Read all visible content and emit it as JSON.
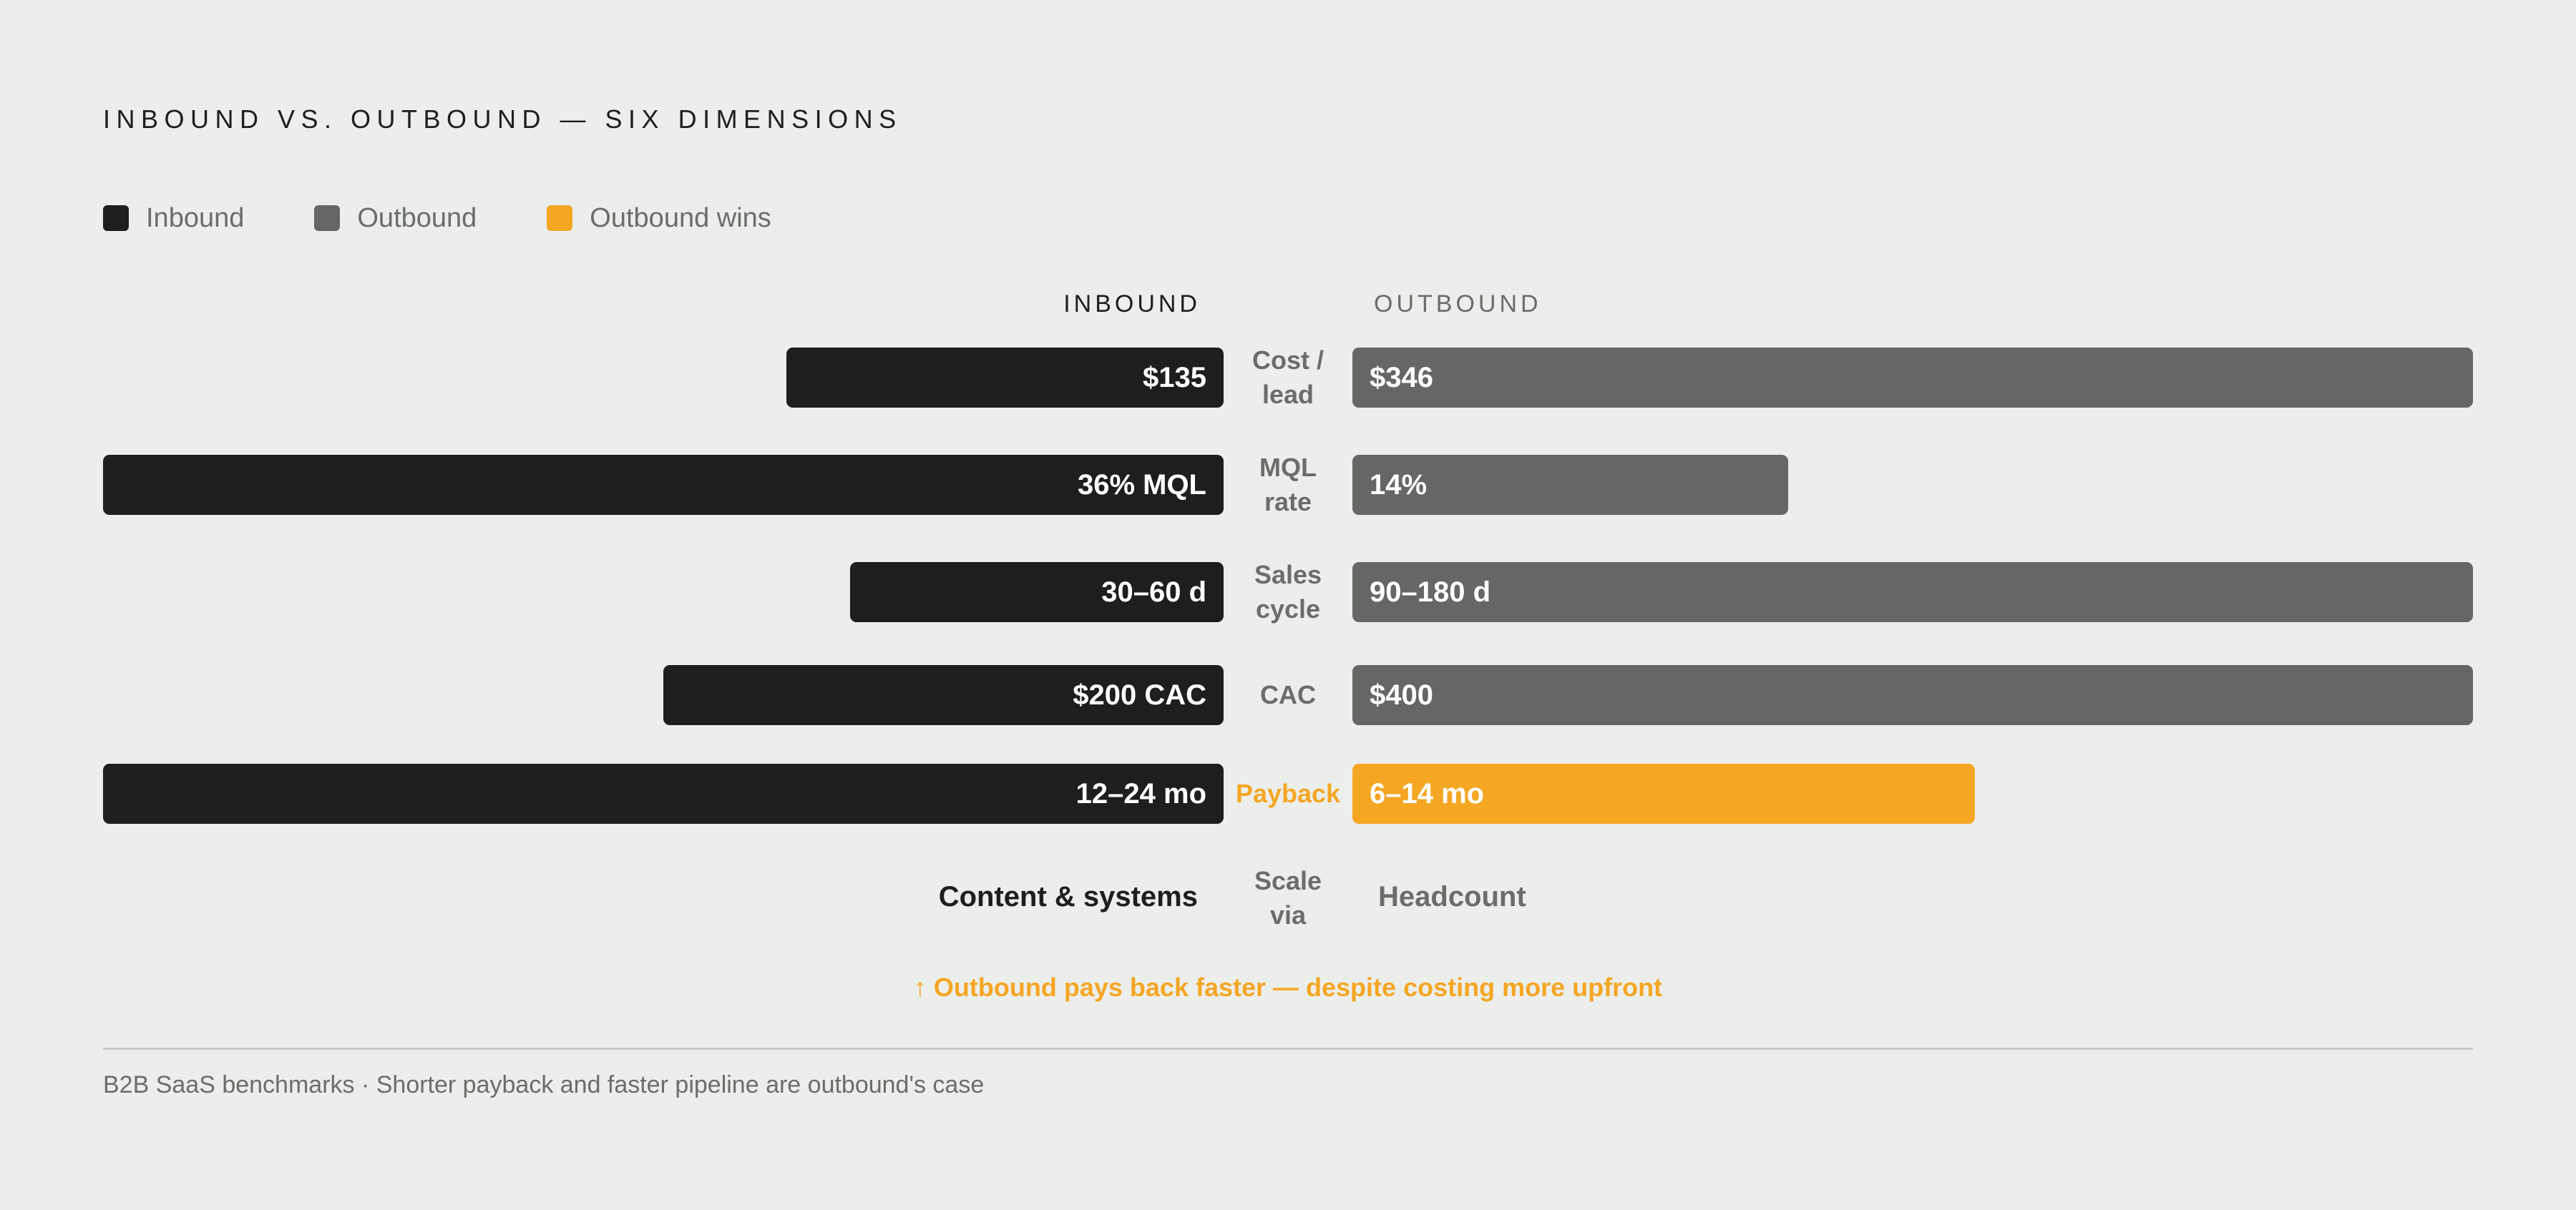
{
  "chart_data": {
    "type": "bar",
    "title": "INBOUND VS. OUTBOUND — SIX DIMENSIONS",
    "legend": [
      {
        "label": "Inbound",
        "color": "#1c1f1c"
      },
      {
        "label": "Outbound",
        "color": "#646763"
      },
      {
        "label": "Outbound wins",
        "color": "#f5a623"
      }
    ],
    "left_header": "INBOUND",
    "right_header": "OUTBOUND",
    "rows": [
      {
        "dimension": "Cost /\nlead",
        "inbound_label": "$135",
        "inbound_value": 135,
        "outbound_label": "$346",
        "outbound_value": 346,
        "outbound_wins": false,
        "max": 346
      },
      {
        "dimension": "MQL\nrate",
        "inbound_label": "36% MQL",
        "inbound_value": 36,
        "outbound_label": "14%",
        "outbound_value": 14,
        "outbound_wins": false,
        "max": 36
      },
      {
        "dimension": "Sales\ncycle",
        "inbound_label": "30–60 d",
        "inbound_value": 45,
        "outbound_label": "90–180 d",
        "outbound_value": 135,
        "outbound_wins": false,
        "max": 135
      },
      {
        "dimension": "CAC",
        "inbound_label": "$200 CAC",
        "inbound_value": 200,
        "outbound_label": "$400",
        "outbound_value": 400,
        "outbound_wins": false,
        "max": 400
      },
      {
        "dimension": "Payback",
        "inbound_label": "12–24 mo",
        "inbound_value": 18,
        "outbound_label": "6–14 mo",
        "outbound_value": 10,
        "outbound_wins": true,
        "max": 18
      }
    ],
    "scale_row": {
      "dimension": "Scale\nvia",
      "inbound_text": "Content & systems",
      "outbound_text": "Headcount"
    },
    "note": "↑ Outbound pays back faster — despite costing more upfront",
    "footer": "B2B SaaS benchmarks · Shorter payback and faster pipeline are outbound's case"
  },
  "colors": {
    "background": "#eceeeb",
    "inbound": "#1c1f1c",
    "outbound": "#646763",
    "highlight": "#f5a623",
    "muted_text": "#6a6d69",
    "divider": "#c9cbc8"
  }
}
